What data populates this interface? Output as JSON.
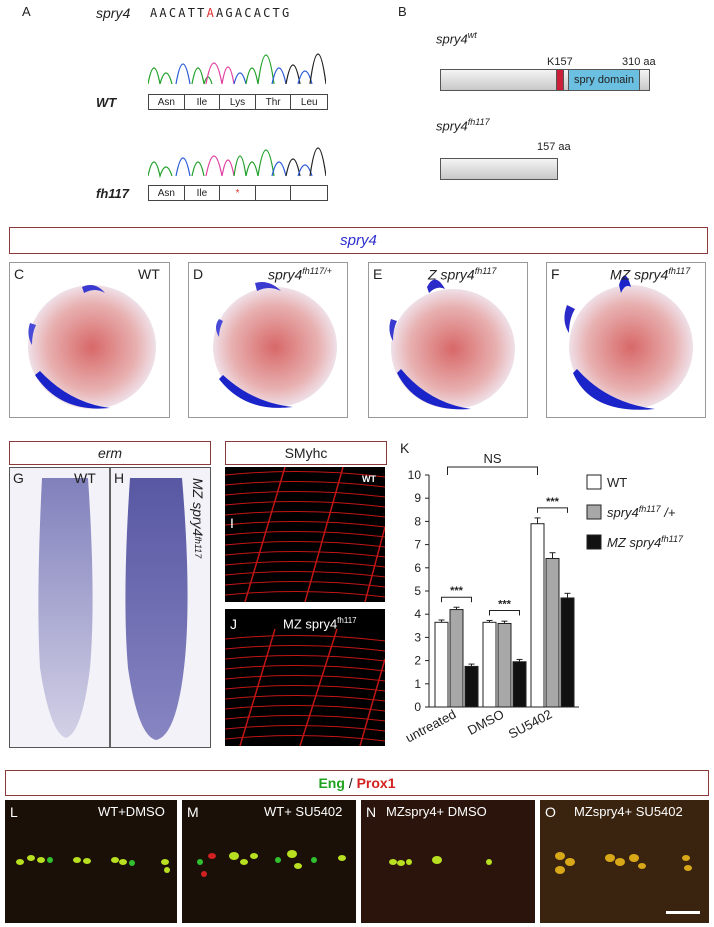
{
  "panelA": {
    "label": "A",
    "gene": "spry4",
    "sequence_pre": "AACATT",
    "sequence_mut": "A",
    "sequence_post": "AGACACTG",
    "wt_label": "WT",
    "wt_aa": [
      "Asn",
      "Ile",
      "Lys",
      "Thr",
      "Leu"
    ],
    "mut_label": "fh117",
    "mut_aa": [
      "Asn",
      "Ile",
      "*",
      "",
      ""
    ]
  },
  "panelB": {
    "label": "B",
    "wt_title_gene": "spry4",
    "wt_title_sup": "wt",
    "k157": "K157",
    "length_wt": "310 aa",
    "domain": "spry domain",
    "mut_title_gene": "spry4",
    "mut_title_sup": "fh117",
    "length_mut": "157 aa"
  },
  "spry4_header": "spry4",
  "panels_CF": [
    {
      "letter": "C",
      "label": "WT"
    },
    {
      "letter": "D",
      "label": "spry4",
      "sup": "fh117/+"
    },
    {
      "letter": "E",
      "label": "Z spry4",
      "sup": "fh117"
    },
    {
      "letter": "F",
      "label": "MZ spry4",
      "sup": "fh117"
    }
  ],
  "erm_header": "erm",
  "panelG": {
    "letter": "G",
    "label": "WT"
  },
  "panelH": {
    "letter": "H",
    "label": "MZ spry4",
    "sup": "fh117"
  },
  "smyhc_header": "SMyhc",
  "panelI": {
    "letter": "I",
    "label": "WT"
  },
  "panelJ": {
    "letter": "J",
    "label": "MZ spry4",
    "sup": "fh117"
  },
  "panelK": {
    "letter": "K"
  },
  "chart_data": {
    "type": "bar",
    "categories": [
      "untreated",
      "DMSO",
      "SU5402"
    ],
    "series": [
      {
        "name": "WT",
        "values": [
          3.65,
          3.65,
          7.9
        ],
        "errors": [
          0.1,
          0.08,
          0.25
        ],
        "color": "#ffffff"
      },
      {
        "name": "spry4 fh117 /+",
        "values": [
          4.2,
          3.6,
          6.4
        ],
        "errors": [
          0.1,
          0.1,
          0.25
        ],
        "color": "#a8a8a8"
      },
      {
        "name": "MZ spry4 fh117",
        "values": [
          1.75,
          1.95,
          4.7
        ],
        "errors": [
          0.1,
          0.1,
          0.2
        ],
        "color": "#111111"
      }
    ],
    "ylim": [
      0,
      10
    ],
    "yticks": [
      "0",
      "1",
      "2",
      "3",
      "4",
      "5",
      "6",
      "7",
      "8",
      "9",
      "10"
    ],
    "significance": [
      "***",
      "***",
      "***"
    ],
    "ns_label": "NS",
    "legend": [
      {
        "text": "WT"
      },
      {
        "text": "spry4",
        "sup": "fh117",
        "post": " /+"
      },
      {
        "text": "MZ spry4",
        "sup": "fh117"
      }
    ],
    "legend_position": "right"
  },
  "eng_prox_header": {
    "eng": "Eng",
    "sep": " / ",
    "prox": "Prox1"
  },
  "panels_LO": [
    {
      "letter": "L",
      "label": "WT+DMSO"
    },
    {
      "letter": "M",
      "label": "WT+ SU5402"
    },
    {
      "letter": "N",
      "label": "MZspry4+ DMSO"
    },
    {
      "letter": "O",
      "label": "MZspry4+ SU5402"
    }
  ],
  "colors": {
    "frame": "#8b3a3a",
    "blue": "#2e2ecf",
    "eng": "#1fa31f",
    "prox": "#d42222",
    "mut": "#e03030",
    "domain": "#6bbfe0",
    "k157": "#cc1f3a"
  }
}
